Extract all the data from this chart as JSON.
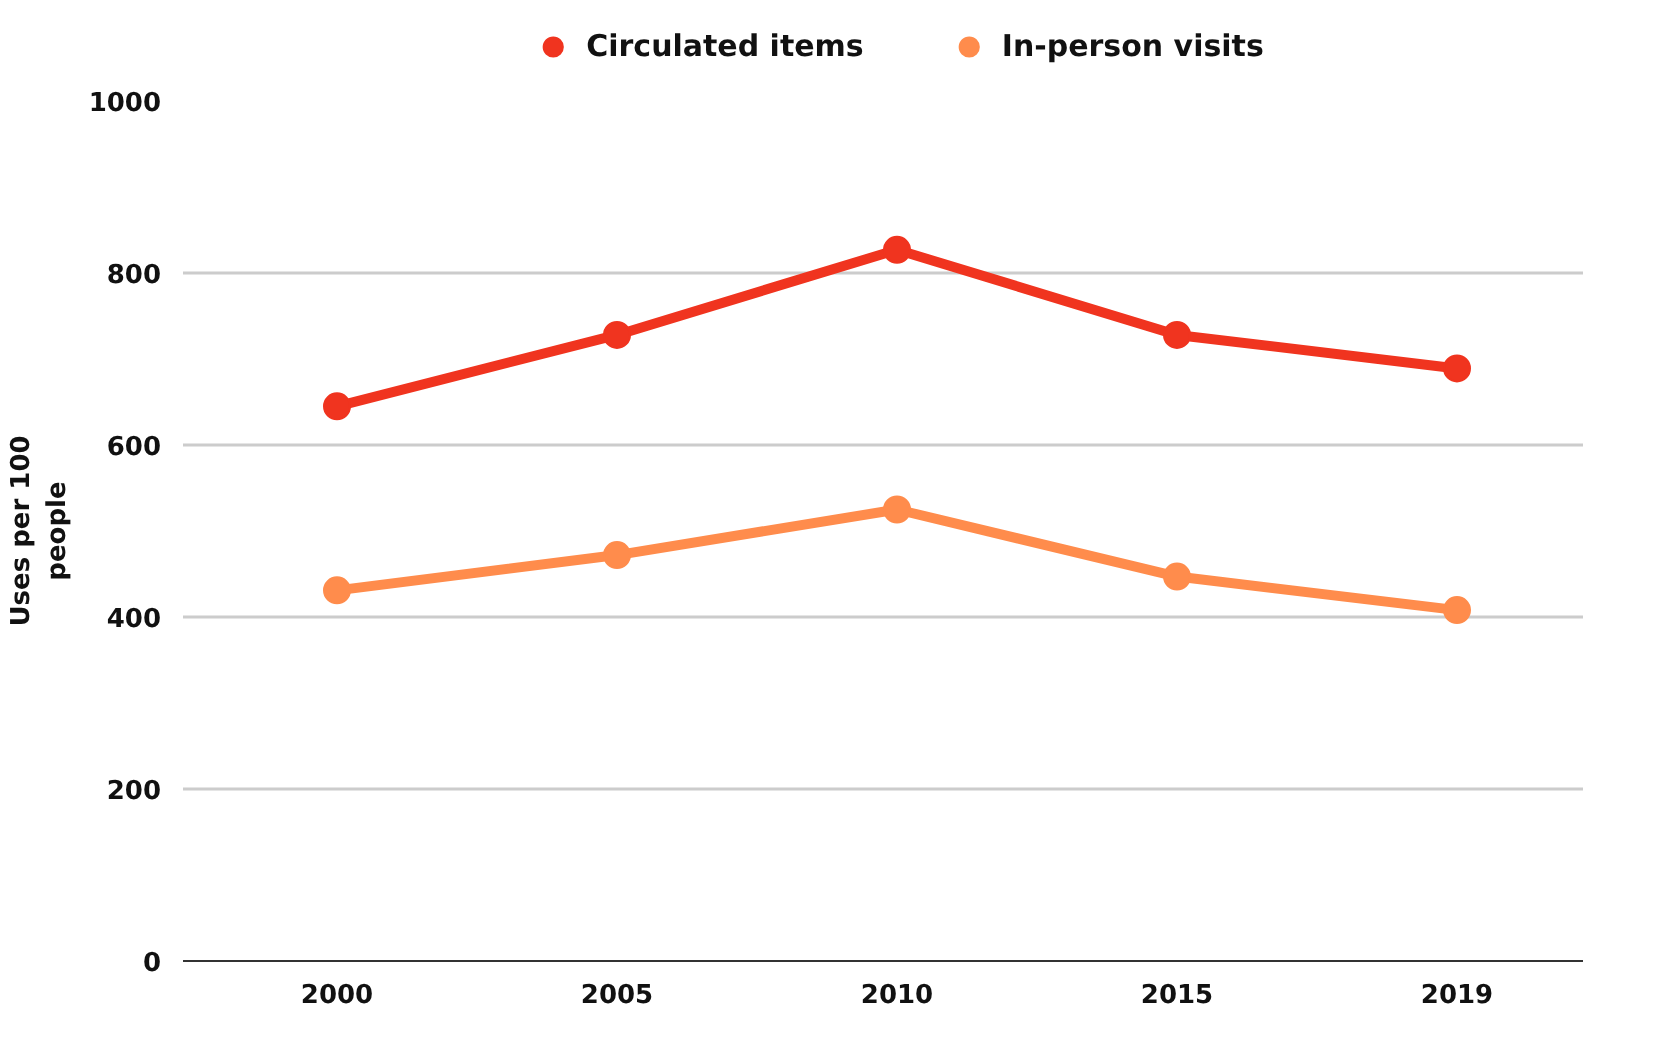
{
  "chart_data": {
    "type": "line",
    "categories": [
      "2000",
      "2005",
      "2010",
      "2015",
      "2019"
    ],
    "ylabel": "Uses per 100 people",
    "series": [
      {
        "name": "Circulated items",
        "color": "#f0341f",
        "values": [
          645,
          728,
          827,
          728,
          689
        ]
      },
      {
        "name": "In-person visits",
        "color": "#ff8c4c",
        "values": [
          431,
          472,
          525,
          447,
          408
        ]
      }
    ],
    "ylim": [
      0,
      1000
    ],
    "yticks": [
      0,
      200,
      400,
      600,
      800,
      1000
    ],
    "grid": "y",
    "legend": "top",
    "marker": "circle",
    "line_style": "solid"
  }
}
